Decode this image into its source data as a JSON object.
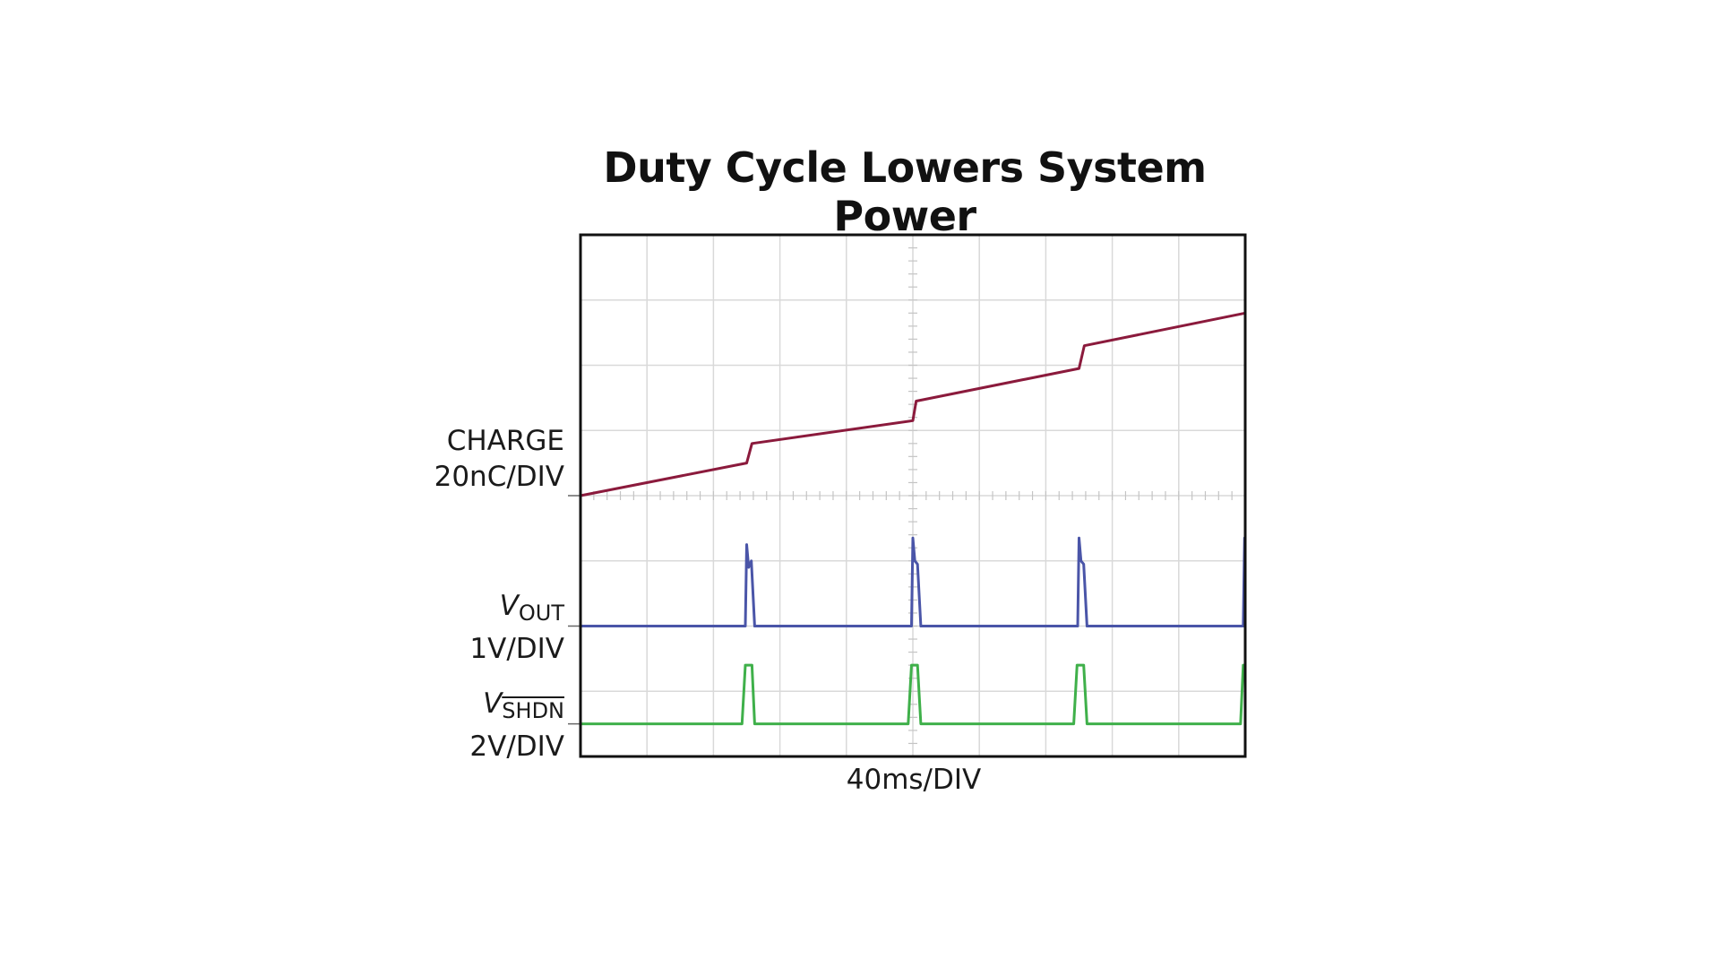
{
  "chart_data": {
    "type": "line",
    "title": "Duty Cycle Lowers System Power",
    "xlabel": "40ms/DIV",
    "x_divisions": 10,
    "y_divisions": 8,
    "grid": true,
    "channels": [
      {
        "label": "CHARGE",
        "scale": "20nC/DIV",
        "sub": "",
        "overline_sub": false,
        "color": "#8b1a3c"
      },
      {
        "label": "V",
        "scale": "1V/DIV",
        "sub": "OUT",
        "overline_sub": false,
        "color": "#4a55a8"
      },
      {
        "label": "V",
        "scale": "2V/DIV",
        "sub": "SHDN",
        "overline_sub": true,
        "color": "#3fb04a"
      }
    ],
    "series": [
      {
        "name": "CHARGE",
        "color": "#8b1a3c",
        "points": [
          [
            0,
            4.0
          ],
          [
            2.5,
            3.5
          ],
          [
            2.58,
            3.2
          ],
          [
            5.0,
            2.85
          ],
          [
            5.05,
            2.55
          ],
          [
            7.5,
            2.05
          ],
          [
            7.58,
            1.7
          ],
          [
            10,
            1.2
          ]
        ]
      },
      {
        "name": "VOUT",
        "color": "#4a55a8",
        "points": [
          [
            0,
            6.0
          ],
          [
            2.48,
            6.0
          ],
          [
            2.5,
            4.75
          ],
          [
            2.53,
            5.1
          ],
          [
            2.57,
            5.0
          ],
          [
            2.62,
            6.0
          ],
          [
            4.98,
            6.0
          ],
          [
            5.0,
            4.65
          ],
          [
            5.03,
            5.0
          ],
          [
            5.07,
            5.05
          ],
          [
            5.12,
            6.0
          ],
          [
            7.48,
            6.0
          ],
          [
            7.5,
            4.65
          ],
          [
            7.53,
            5.0
          ],
          [
            7.57,
            5.05
          ],
          [
            7.62,
            6.0
          ],
          [
            9.97,
            6.0
          ],
          [
            9.99,
            4.65
          ]
        ]
      },
      {
        "name": "VSHDN",
        "color": "#3fb04a",
        "points": [
          [
            0,
            7.5
          ],
          [
            2.43,
            7.5
          ],
          [
            2.48,
            6.6
          ],
          [
            2.58,
            6.6
          ],
          [
            2.62,
            7.5
          ],
          [
            4.93,
            7.5
          ],
          [
            4.98,
            6.6
          ],
          [
            5.07,
            6.6
          ],
          [
            5.12,
            7.5
          ],
          [
            7.42,
            7.5
          ],
          [
            7.47,
            6.6
          ],
          [
            7.57,
            6.6
          ],
          [
            7.62,
            7.5
          ],
          [
            9.93,
            7.5
          ],
          [
            9.97,
            6.6
          ]
        ]
      }
    ]
  }
}
